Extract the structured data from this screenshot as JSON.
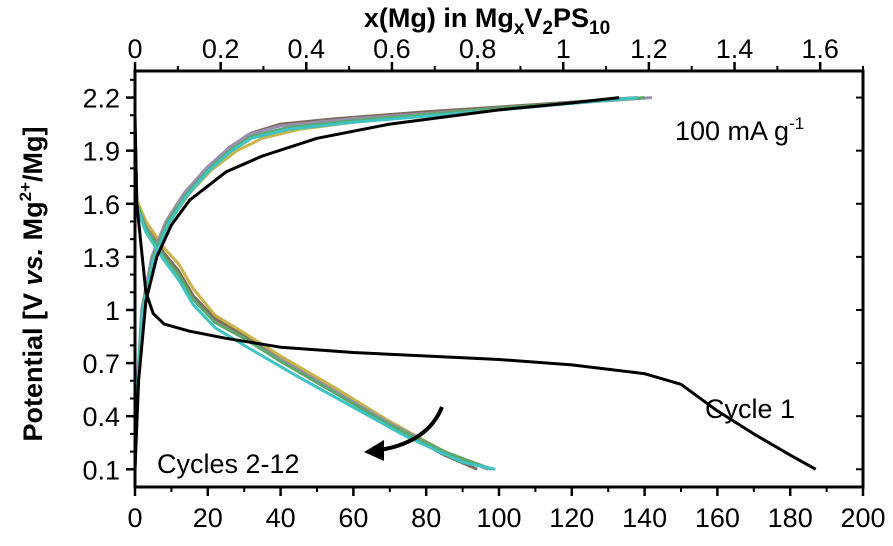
{
  "chart_data": {
    "type": "line",
    "xlabel_bottom": "",
    "xlabel_top": {
      "pre": "x(Mg) in Mg",
      "sub1": "x",
      "mid": "V",
      "sub2": "2",
      "post": "PS",
      "sub3": "10"
    },
    "ylabel": {
      "pre": "Potential [V ",
      "ital": "vs.",
      "mid": " Mg",
      "sup": "2+",
      "post": "/Mg]"
    },
    "xlim": [
      0,
      200
    ],
    "ylim": [
      0,
      2.35
    ],
    "top_xlim": [
      0,
      1.7
    ],
    "x_ticks": [
      "0",
      "20",
      "40",
      "60",
      "80",
      "100",
      "120",
      "140",
      "160",
      "180",
      "200"
    ],
    "y_ticks": [
      "0.1",
      "0.4",
      "0.7",
      "1",
      "1.3",
      "1.6",
      "1.9",
      "2.2"
    ],
    "top_ticks": [
      "0",
      "0.2",
      "0.4",
      "0.6",
      "0.8",
      "1",
      "1.2",
      "1.4",
      "1.6"
    ],
    "annotations": {
      "rate": {
        "pre": "100 mA g",
        "sup": "-1"
      },
      "cycle1": "Cycle 1",
      "cycles": "Cycles 2-12"
    },
    "series": [
      {
        "color": "#000000",
        "discharge": [
          [
            0,
            2.1
          ],
          [
            0.5,
            1.6
          ],
          [
            3,
            1.1
          ],
          [
            5,
            0.98
          ],
          [
            8,
            0.92
          ],
          [
            15,
            0.88
          ],
          [
            25,
            0.84
          ],
          [
            40,
            0.79
          ],
          [
            60,
            0.76
          ],
          [
            80,
            0.74
          ],
          [
            100,
            0.72
          ],
          [
            120,
            0.69
          ],
          [
            140,
            0.64
          ],
          [
            150,
            0.58
          ],
          [
            160,
            0.43
          ],
          [
            170,
            0.3
          ],
          [
            180,
            0.18
          ],
          [
            187,
            0.1
          ]
        ],
        "charge": [
          [
            0,
            0.1
          ],
          [
            1,
            0.6
          ],
          [
            3,
            1.05
          ],
          [
            6,
            1.3
          ],
          [
            10,
            1.48
          ],
          [
            15,
            1.62
          ],
          [
            25,
            1.78
          ],
          [
            35,
            1.87
          ],
          [
            50,
            1.97
          ],
          [
            70,
            2.05
          ],
          [
            100,
            2.13
          ],
          [
            120,
            2.17
          ],
          [
            133,
            2.2
          ]
        ]
      },
      {
        "color": "#7d6a5a",
        "discharge": [
          [
            0,
            2.05
          ],
          [
            0.5,
            1.62
          ],
          [
            3,
            1.48
          ],
          [
            8,
            1.32
          ],
          [
            12,
            1.22
          ],
          [
            16,
            1.08
          ],
          [
            22,
            0.95
          ],
          [
            30,
            0.86
          ],
          [
            40,
            0.73
          ],
          [
            55,
            0.55
          ],
          [
            70,
            0.35
          ],
          [
            85,
            0.18
          ],
          [
            94,
            0.1
          ]
        ],
        "charge": [
          [
            0,
            0.1
          ],
          [
            0.5,
            0.5
          ],
          [
            2,
            1.0
          ],
          [
            5,
            1.3
          ],
          [
            9,
            1.5
          ],
          [
            14,
            1.66
          ],
          [
            20,
            1.8
          ],
          [
            26,
            1.92
          ],
          [
            32,
            2.0
          ],
          [
            40,
            2.05
          ],
          [
            55,
            2.08
          ],
          [
            80,
            2.12
          ],
          [
            110,
            2.16
          ],
          [
            138,
            2.2
          ]
        ]
      },
      {
        "color": "#c9b34a",
        "discharge": [
          [
            0,
            2.05
          ],
          [
            0.5,
            1.62
          ],
          [
            3,
            1.5
          ],
          [
            8,
            1.35
          ],
          [
            12,
            1.26
          ],
          [
            16,
            1.12
          ],
          [
            22,
            0.97
          ],
          [
            30,
            0.87
          ],
          [
            40,
            0.74
          ],
          [
            55,
            0.56
          ],
          [
            70,
            0.37
          ],
          [
            85,
            0.2
          ],
          [
            96,
            0.11
          ]
        ],
        "charge": [
          [
            0,
            0.12
          ],
          [
            0.6,
            0.52
          ],
          [
            2.2,
            1.0
          ],
          [
            5.5,
            1.3
          ],
          [
            9.5,
            1.5
          ],
          [
            15,
            1.66
          ],
          [
            21,
            1.79
          ],
          [
            28,
            1.9
          ],
          [
            35,
            1.97
          ],
          [
            45,
            2.02
          ],
          [
            60,
            2.06
          ],
          [
            90,
            2.12
          ],
          [
            140,
            2.2
          ]
        ]
      },
      {
        "color": "#9b8fb0",
        "discharge": [
          [
            0,
            2.02
          ],
          [
            0.5,
            1.6
          ],
          [
            3,
            1.47
          ],
          [
            8,
            1.3
          ],
          [
            12,
            1.2
          ],
          [
            16,
            1.06
          ],
          [
            22,
            0.93
          ],
          [
            30,
            0.84
          ],
          [
            40,
            0.72
          ],
          [
            55,
            0.54
          ],
          [
            70,
            0.36
          ],
          [
            85,
            0.2
          ],
          [
            97,
            0.1
          ]
        ],
        "charge": [
          [
            0,
            0.1
          ],
          [
            0.4,
            0.5
          ],
          [
            1.8,
            1.0
          ],
          [
            4.6,
            1.3
          ],
          [
            8.5,
            1.5
          ],
          [
            13.5,
            1.66
          ],
          [
            19.5,
            1.8
          ],
          [
            25.5,
            1.91
          ],
          [
            31,
            1.99
          ],
          [
            40,
            2.04
          ],
          [
            60,
            2.08
          ],
          [
            100,
            2.14
          ],
          [
            142,
            2.2
          ]
        ]
      },
      {
        "color": "#5aa86a",
        "discharge": [
          [
            0,
            2.0
          ],
          [
            0.5,
            1.6
          ],
          [
            3,
            1.46
          ],
          [
            8,
            1.3
          ],
          [
            12,
            1.2
          ],
          [
            16,
            1.06
          ],
          [
            22,
            0.93
          ],
          [
            30,
            0.84
          ],
          [
            40,
            0.71
          ],
          [
            55,
            0.53
          ],
          [
            70,
            0.35
          ],
          [
            85,
            0.2
          ],
          [
            98,
            0.1
          ]
        ],
        "charge": [
          [
            0,
            0.11
          ],
          [
            0.5,
            0.52
          ],
          [
            2,
            1.0
          ],
          [
            5,
            1.3
          ],
          [
            9,
            1.5
          ],
          [
            14,
            1.65
          ],
          [
            20,
            1.79
          ],
          [
            26,
            1.9
          ],
          [
            32,
            1.98
          ],
          [
            42,
            2.03
          ],
          [
            60,
            2.07
          ],
          [
            100,
            2.14
          ],
          [
            140,
            2.2
          ]
        ]
      },
      {
        "color": "#3fc4c4",
        "discharge": [
          [
            0,
            1.98
          ],
          [
            0.5,
            1.58
          ],
          [
            3,
            1.44
          ],
          [
            8,
            1.28
          ],
          [
            12,
            1.17
          ],
          [
            16,
            1.03
          ],
          [
            22,
            0.9
          ],
          [
            30,
            0.8
          ],
          [
            35,
            0.74
          ],
          [
            45,
            0.62
          ],
          [
            60,
            0.45
          ],
          [
            75,
            0.28
          ],
          [
            90,
            0.14
          ],
          [
            99,
            0.1
          ]
        ],
        "charge": [
          [
            0,
            0.1
          ],
          [
            0.5,
            0.5
          ],
          [
            2,
            0.98
          ],
          [
            5,
            1.28
          ],
          [
            9,
            1.48
          ],
          [
            14,
            1.64
          ],
          [
            20,
            1.78
          ],
          [
            26,
            1.89
          ],
          [
            32,
            1.97
          ],
          [
            42,
            2.02
          ],
          [
            60,
            2.06
          ],
          [
            100,
            2.13
          ],
          [
            138,
            2.2
          ]
        ]
      }
    ]
  }
}
